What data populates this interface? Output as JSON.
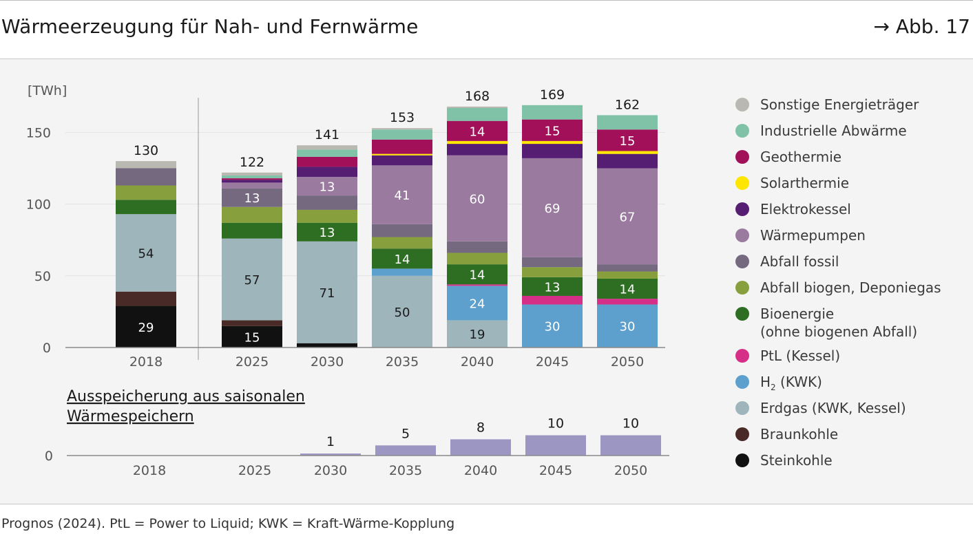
{
  "header": {
    "title": "Wärmeerzeugung für Nah- und Fernwärme",
    "figure_ref": "→ Abb. 17"
  },
  "footer": {
    "source": "Prognos (2024). PtL = Power to Liquid; KWK = Kraft-Wärme-Kopplung"
  },
  "chart_data": [
    {
      "type": "bar",
      "stacked": true,
      "title": "Wärmeerzeugung für Nah- und Fernwärme",
      "ylabel": "[TWh]",
      "ylim": [
        0,
        170
      ],
      "yticks": [
        0,
        50,
        100,
        150
      ],
      "categories": [
        "2018",
        "2025",
        "2030",
        "2035",
        "2040",
        "2045",
        "2050"
      ],
      "totals": [
        130,
        122,
        141,
        153,
        168,
        169,
        162
      ],
      "legend_position": "right",
      "series": [
        {
          "name": "Steinkohle",
          "color": "#111111",
          "values": [
            29,
            15,
            3,
            0,
            0,
            0,
            0
          ],
          "label_color": "#ffffff"
        },
        {
          "name": "Braunkohle",
          "color": "#4a2a27",
          "values": [
            10,
            4,
            0,
            0,
            0,
            0,
            0
          ],
          "label_color": "#ffffff"
        },
        {
          "name": "Erdgas (KWK, Kessel)",
          "color": "#9db5bb",
          "values": [
            54,
            57,
            71,
            50,
            19,
            0,
            0
          ],
          "label_color": "#1a1a1a"
        },
        {
          "name": "H",
          "name_sub": "2",
          "name_rest": " (KWK)",
          "color": "#5ea0cd",
          "values": [
            0,
            0,
            0,
            5,
            24,
            30,
            30
          ],
          "label_color": "#ffffff"
        },
        {
          "name": "PtL (Kessel)",
          "color": "#d62f87",
          "values": [
            0,
            0,
            0,
            0,
            1,
            6,
            4
          ],
          "label_color": "#ffffff"
        },
        {
          "name": "Bioenergie",
          "name_line2": "(ohne biogenen Abfall)",
          "color": "#2e6e23",
          "values": [
            10,
            11,
            13,
            14,
            14,
            13,
            14
          ],
          "label_color": "#ffffff"
        },
        {
          "name": "Abfall biogen, Deponiegas",
          "color": "#87a03d",
          "values": [
            10,
            11,
            9,
            8,
            8,
            7,
            5
          ],
          "label_color": "#ffffff"
        },
        {
          "name": "Abfall fossil",
          "color": "#75697f",
          "values": [
            12,
            13,
            10,
            9,
            8,
            7,
            5
          ],
          "label_color": "#ffffff"
        },
        {
          "name": "Wärmepumpen",
          "color": "#9b7aa0",
          "values": [
            0,
            4,
            13,
            41,
            60,
            69,
            67
          ],
          "label_color": "#ffffff"
        },
        {
          "name": "Elektrokessel",
          "color": "#561e72",
          "values": [
            0,
            2,
            7,
            7,
            8,
            10,
            10
          ],
          "label_color": "#ffffff"
        },
        {
          "name": "Solarthermie",
          "color": "#ffe600",
          "values": [
            0,
            0,
            0,
            1,
            2,
            2,
            2
          ],
          "label_color": "#1a1a1a"
        },
        {
          "name": "Geothermie",
          "color": "#a3105a",
          "values": [
            0,
            1,
            7,
            10,
            14,
            15,
            15
          ],
          "label_color": "#ffffff"
        },
        {
          "name": "Industrielle Abwärme",
          "color": "#7fc2a8",
          "values": [
            0,
            2,
            5,
            7,
            9,
            10,
            10
          ],
          "label_color": "#1a1a1a"
        },
        {
          "name": "Sonstige Energieträger",
          "color": "#b9b8b1",
          "values": [
            5,
            2,
            3,
            1,
            1,
            0,
            0
          ],
          "label_color": "#1a1a1a"
        }
      ],
      "value_labels": [
        {
          "series": "Steinkohle",
          "category": "2018",
          "text": "29"
        },
        {
          "series": "Steinkohle",
          "category": "2025",
          "text": "15"
        },
        {
          "series": "Erdgas (KWK, Kessel)",
          "category": "2018",
          "text": "54"
        },
        {
          "series": "Erdgas (KWK, Kessel)",
          "category": "2025",
          "text": "57"
        },
        {
          "series": "Erdgas (KWK, Kessel)",
          "category": "2030",
          "text": "71"
        },
        {
          "series": "Erdgas (KWK, Kessel)",
          "category": "2035",
          "text": "50"
        },
        {
          "series": "Erdgas (KWK, Kessel)",
          "category": "2040",
          "text": "19"
        },
        {
          "series": "H",
          "category": "2040",
          "text": "24"
        },
        {
          "series": "H",
          "category": "2045",
          "text": "30"
        },
        {
          "series": "H",
          "category": "2050",
          "text": "30"
        },
        {
          "series": "Bioenergie",
          "category": "2030",
          "text": "13"
        },
        {
          "series": "Bioenergie",
          "category": "2035",
          "text": "14"
        },
        {
          "series": "Bioenergie",
          "category": "2040",
          "text": "14"
        },
        {
          "series": "Bioenergie",
          "category": "2045",
          "text": "13"
        },
        {
          "series": "Bioenergie",
          "category": "2050",
          "text": "14"
        },
        {
          "series": "Abfall fossil",
          "category": "2025",
          "text": "13"
        },
        {
          "series": "Wärmepumpen",
          "category": "2030",
          "text": "13"
        },
        {
          "series": "Wärmepumpen",
          "category": "2035",
          "text": "41"
        },
        {
          "series": "Wärmepumpen",
          "category": "2040",
          "text": "60"
        },
        {
          "series": "Wärmepumpen",
          "category": "2045",
          "text": "69"
        },
        {
          "series": "Wärmepumpen",
          "category": "2050",
          "text": "67"
        },
        {
          "series": "Geothermie",
          "category": "2040",
          "text": "14"
        },
        {
          "series": "Geothermie",
          "category": "2045",
          "text": "15"
        },
        {
          "series": "Geothermie",
          "category": "2050",
          "text": "15"
        }
      ]
    },
    {
      "type": "bar",
      "title": "Ausspeicherung aus saisonalen Wärmespeichern",
      "title_line1": "Ausspeicherung aus saisonalen",
      "title_line2": "Wärmespeichern",
      "categories": [
        "2018",
        "2025",
        "2030",
        "2035",
        "2040",
        "2045",
        "2050"
      ],
      "values": [
        0,
        0,
        1,
        5,
        8,
        10,
        10
      ],
      "labels": [
        "",
        "",
        "1",
        "5",
        "8",
        "10",
        "10"
      ],
      "yticks": [
        0
      ],
      "color": "#9b97c2"
    }
  ]
}
